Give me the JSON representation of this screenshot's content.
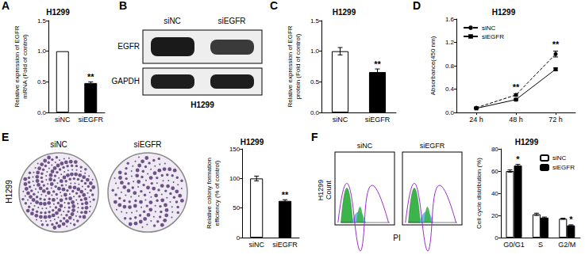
{
  "chart_data": [
    {
      "panel": "A",
      "type": "bar",
      "title": "H1299",
      "y_label": "Relative expression of EGFR\nmRNA (Fold of control)",
      "categories": [
        "siNC",
        "siEGFR"
      ],
      "values": [
        1,
        0.48
      ],
      "errors": [
        0,
        0.02
      ],
      "colors": [
        "#ffffff",
        "#000000"
      ],
      "significance": [
        null,
        "**"
      ],
      "ylim": [
        0,
        1.5
      ],
      "yticks": [
        {
          "value": 0,
          "label": "0.0"
        },
        {
          "value": 0.5,
          "label": "0.5"
        },
        {
          "value": 1,
          "label": "1.0"
        },
        {
          "value": 1.5,
          "label": "1.5"
        }
      ],
      "grid": false
    },
    {
      "panel": "C",
      "type": "bar",
      "title": "H1299",
      "y_label": "Relative expression of EGFR\nprotein (Fold of control)",
      "categories": [
        "siNC",
        "siEGFR"
      ],
      "values": [
        1,
        0.66
      ],
      "errors": [
        0.06,
        0.05
      ],
      "colors": [
        "#ffffff",
        "#000000"
      ],
      "significance": [
        null,
        "**"
      ],
      "ylim": [
        0,
        1.5
      ],
      "yticks": [
        {
          "value": 0,
          "label": "0.0"
        },
        {
          "value": 0.5,
          "label": "0.5"
        },
        {
          "value": 1,
          "label": "1.0"
        },
        {
          "value": 1.5,
          "label": "1.5"
        }
      ],
      "grid": false
    },
    {
      "panel": "D",
      "type": "line",
      "title": "H1299",
      "y_label": "Absorbance(450 nm)",
      "x": [
        "24 h",
        "48 h",
        "72 h"
      ],
      "series": [
        {
          "name": "siNC",
          "color": "#000000",
          "line_style": "dashed",
          "marker": "circle",
          "values": [
            0.08,
            0.3,
            1.0
          ],
          "errors": [
            0.01,
            0.02,
            0.05
          ]
        },
        {
          "name": "siEGFR",
          "color": "#000000",
          "line_style": "solid",
          "marker": "square",
          "values": [
            0.07,
            0.22,
            0.74
          ],
          "errors": [
            0.01,
            0.01,
            0.02
          ]
        }
      ],
      "significance": [
        null,
        "**",
        "**"
      ],
      "ylim": [
        0,
        1.6
      ],
      "yticks": [
        {
          "value": 0,
          "label": "0.0"
        },
        {
          "value": 0.4,
          "label": "0.4"
        },
        {
          "value": 0.8,
          "label": "0.8"
        },
        {
          "value": 1.2,
          "label": "1.2"
        },
        {
          "value": 1.6,
          "label": "1.6"
        }
      ],
      "legend": "top-left",
      "grid": false
    },
    {
      "type": "bar",
      "title": "H1299",
      "y_label": "Relative colony formation\nefficiency (% of control)",
      "categories": [
        "siNC",
        "siEGFR"
      ],
      "values": [
        100,
        62
      ],
      "errors": [
        4,
        2
      ],
      "colors": [
        "#ffffff",
        "#000000"
      ],
      "significance": [
        null,
        "**"
      ],
      "ylim": [
        0,
        150
      ],
      "yticks": [
        0,
        50,
        100,
        150
      ],
      "grid": false
    },
    {
      "type": "bar",
      "title": "H1299",
      "y_label": "Cell cycle distribution (%)",
      "categories": [
        "G0/G1",
        "S",
        "G2/M"
      ],
      "series": [
        {
          "name": "siNC",
          "color": "#ffffff",
          "values": [
            60,
            21,
            17
          ],
          "errors": [
            1,
            1,
            0.5
          ],
          "significance": [
            null,
            null,
            null
          ]
        },
        {
          "name": "siEGFR",
          "color": "#000000",
          "values": [
            65,
            18,
            11
          ],
          "errors": [
            1,
            0.5,
            0.5
          ],
          "significance": [
            "*",
            null,
            "*"
          ]
        }
      ],
      "ylim": [
        0,
        80
      ],
      "yticks": [
        0,
        20,
        40,
        60,
        80
      ],
      "legend": "top-right",
      "grid": false
    }
  ],
  "blot": {
    "panel": "B",
    "lanes": [
      "siNC",
      "siEGFR"
    ],
    "rows": [
      "EGFR",
      "GAPDH"
    ],
    "caption": "H1299"
  },
  "colonies": {
    "panel": "E",
    "images": [
      "siNC",
      "siEGFR"
    ],
    "side_label": "H1299"
  },
  "histograms": {
    "panel": "F",
    "images": [
      "siNC",
      "siEGFR"
    ],
    "y_label": [
      "H1299",
      "Count"
    ],
    "x_label": "PI"
  }
}
